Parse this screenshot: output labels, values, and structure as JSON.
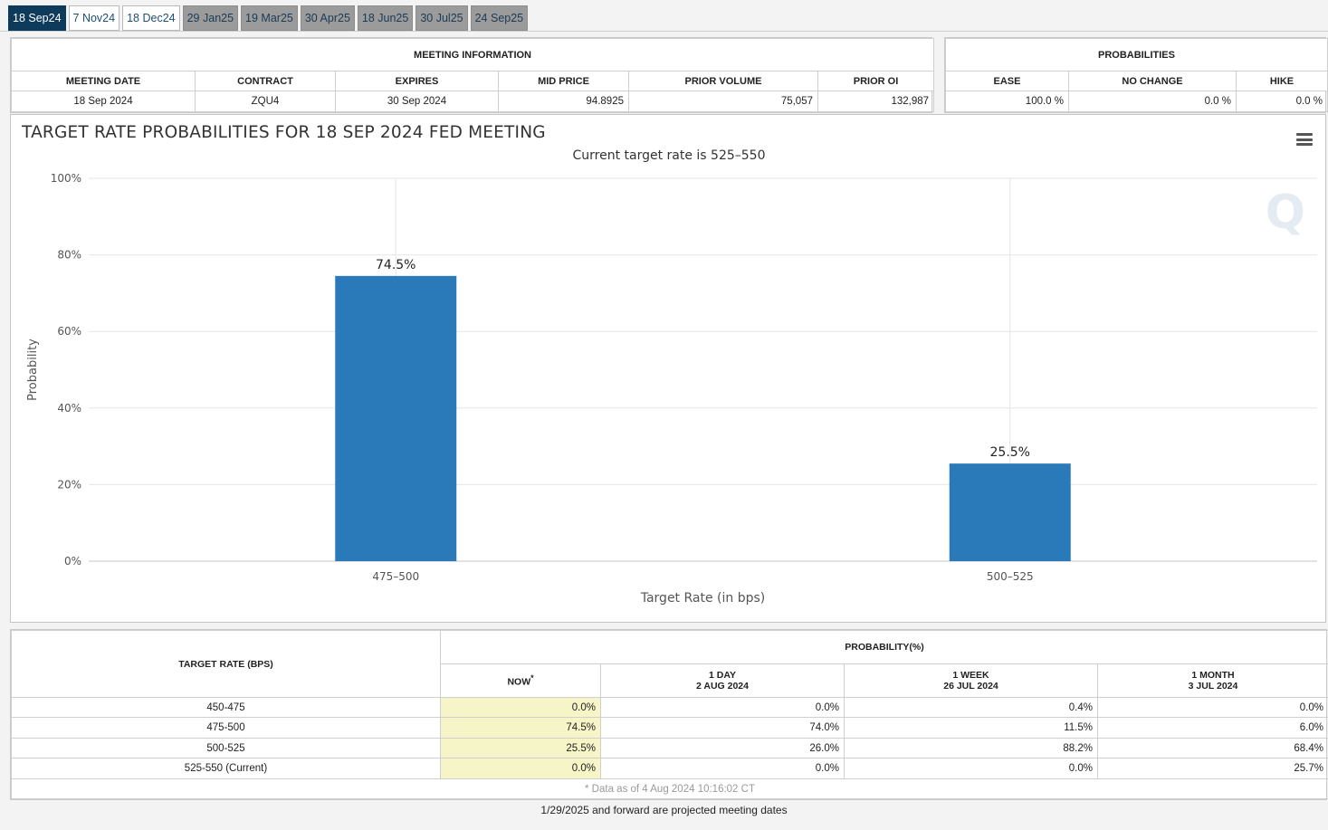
{
  "tabs": [
    {
      "label": "18 Sep24",
      "state": "active"
    },
    {
      "label": "7 Nov24",
      "state": "normal"
    },
    {
      "label": "18 Dec24",
      "state": "normal"
    },
    {
      "label": "29 Jan25",
      "state": "projected"
    },
    {
      "label": "19 Mar25",
      "state": "projected"
    },
    {
      "label": "30 Apr25",
      "state": "projected"
    },
    {
      "label": "18 Jun25",
      "state": "projected"
    },
    {
      "label": "30 Jul25",
      "state": "projected"
    },
    {
      "label": "24 Sep25",
      "state": "projected"
    }
  ],
  "meeting_info": {
    "caption": "MEETING INFORMATION",
    "headers": [
      "MEETING DATE",
      "CONTRACT",
      "EXPIRES",
      "MID PRICE",
      "PRIOR VOLUME",
      "PRIOR OI"
    ],
    "values": [
      "18 Sep 2024",
      "ZQU4",
      "30 Sep 2024",
      "94.8925",
      "75,057",
      "132,987"
    ]
  },
  "probabilities": {
    "caption": "PROBABILITIES",
    "headers": [
      "EASE",
      "NO CHANGE",
      "HIKE"
    ],
    "values": [
      "100.0 %",
      "0.0 %",
      "0.0 %"
    ]
  },
  "chart": {
    "title": "TARGET RATE PROBABILITIES FOR 18 SEP 2024 FED MEETING",
    "subtitle": "Current target rate is 525–550",
    "watermark": "Q",
    "menu_icon": "hamburger-menu-icon"
  },
  "chart_data": {
    "type": "bar",
    "categories": [
      "475–500",
      "500–525"
    ],
    "values": [
      74.5,
      25.5
    ],
    "data_labels": [
      "74.5%",
      "25.5%"
    ],
    "xlabel": "Target Rate (in bps)",
    "ylabel": "Probability",
    "ylim": [
      0,
      100
    ],
    "yticks": [
      "0%",
      "20%",
      "40%",
      "60%",
      "80%",
      "100%"
    ],
    "bar_color": "#2a7ab9",
    "grid": true
  },
  "prob_table": {
    "col_target": "TARGET RATE (BPS)",
    "col_prob": "PROBABILITY(%)",
    "now_label": "NOW",
    "now_mark": "*",
    "periods": [
      {
        "line1": "1 DAY",
        "line2": "2 AUG 2024"
      },
      {
        "line1": "1 WEEK",
        "line2": "26 JUL 2024"
      },
      {
        "line1": "1 MONTH",
        "line2": "3 JUL 2024"
      }
    ],
    "rows": [
      {
        "rate": "450-475",
        "now": "0.0%",
        "d1": "0.0%",
        "w1": "0.4%",
        "m1": "0.0%"
      },
      {
        "rate": "475-500",
        "now": "74.5%",
        "d1": "74.0%",
        "w1": "11.5%",
        "m1": "6.0%"
      },
      {
        "rate": "500-525",
        "now": "25.5%",
        "d1": "26.0%",
        "w1": "88.2%",
        "m1": "68.4%"
      },
      {
        "rate": "525-550 (Current)",
        "now": "0.0%",
        "d1": "0.0%",
        "w1": "0.0%",
        "m1": "25.7%"
      }
    ],
    "footnote": "* Data as of 4 Aug 2024 10:16:02 CT"
  },
  "bottom_note": "1/29/2025 and forward are projected meeting dates"
}
